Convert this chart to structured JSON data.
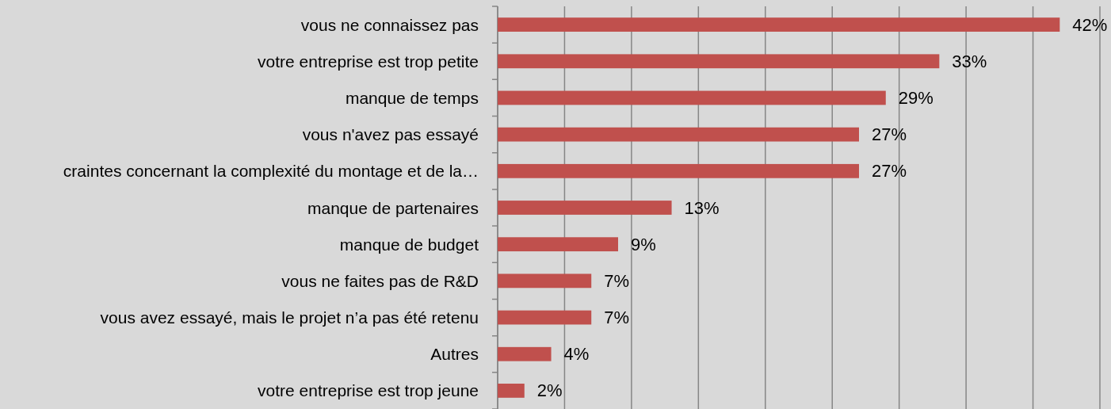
{
  "chart_data": {
    "type": "bar",
    "orientation": "horizontal",
    "categories": [
      "vous ne connaissez pas",
      "votre entreprise est trop petite",
      "manque de temps",
      "vous n'avez pas essayé",
      "craintes concernant la complexité du montage et de la…",
      "manque de partenaires",
      "manque de budget",
      "vous ne faites pas de R&D",
      "vous avez essayé, mais le projet n’a pas été retenu",
      "Autres",
      "votre entreprise est trop jeune"
    ],
    "values": [
      42,
      33,
      29,
      27,
      27,
      13,
      9,
      7,
      7,
      4,
      2
    ],
    "value_labels": [
      "42%",
      "33%",
      "29%",
      "27%",
      "27%",
      "13%",
      "9%",
      "7%",
      "7%",
      "4%",
      "2%"
    ],
    "color": "#c0504d",
    "xlim": [
      0,
      45
    ],
    "xticks": [
      {
        "value": 0,
        "label": null
      },
      {
        "value": 5,
        "label": null
      },
      {
        "value": 10,
        "label": null
      },
      {
        "value": 15,
        "label": null
      },
      {
        "value": 20,
        "label": null
      },
      {
        "value": 25,
        "label": null
      },
      {
        "value": 30,
        "label": null
      },
      {
        "value": 35,
        "label": null
      },
      {
        "value": 40,
        "label": null
      },
      {
        "value": 45,
        "label": null
      }
    ],
    "grid": "x",
    "tick_labels": "y"
  }
}
